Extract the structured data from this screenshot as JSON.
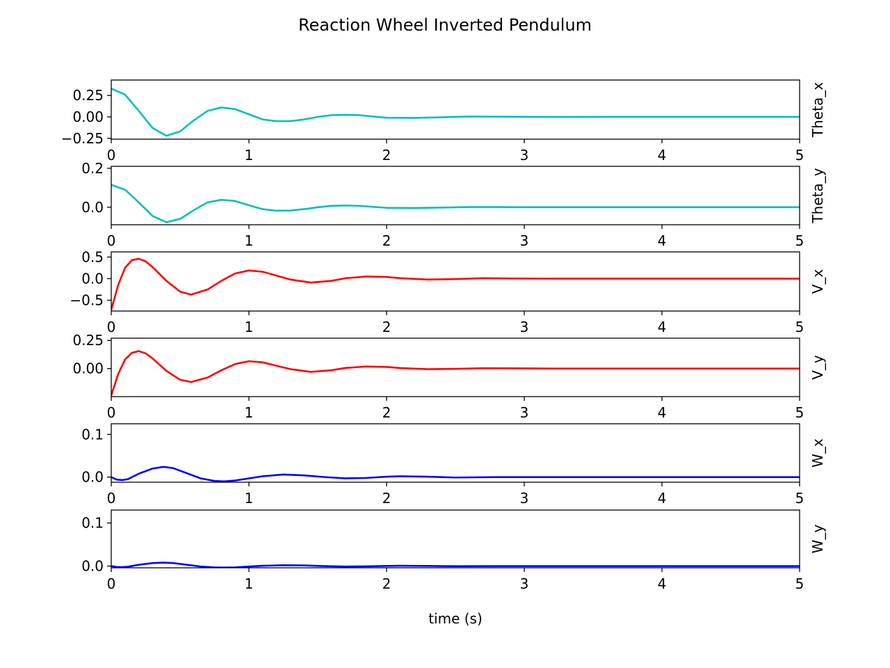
{
  "figure": {
    "title": "Reaction Wheel Inverted Pendulum",
    "xlabel": "time (s)"
  },
  "chart_data": [
    {
      "type": "line",
      "ylabel": "Theta_x",
      "color": "#00bfbf",
      "xlim": [
        0,
        5
      ],
      "ylim": [
        -0.26,
        0.43
      ],
      "xticks": [
        0,
        1,
        2,
        3,
        4,
        5
      ],
      "xtick_labels": [
        "0",
        "1",
        "2",
        "3",
        "4",
        "5"
      ],
      "yticks": [
        -0.25,
        0,
        0.25
      ],
      "ytick_labels": [
        "−0.25",
        "0.00",
        "0.25"
      ],
      "x": [
        0,
        0.1,
        0.2,
        0.3,
        0.4,
        0.5,
        0.6,
        0.7,
        0.8,
        0.9,
        1.0,
        1.1,
        1.2,
        1.3,
        1.4,
        1.5,
        1.6,
        1.7,
        1.8,
        1.9,
        2.0,
        2.2,
        2.4,
        2.6,
        2.8,
        3.0,
        3.3,
        3.6,
        4.0,
        4.5,
        5.0
      ],
      "y": [
        0.33,
        0.26,
        0.07,
        -0.13,
        -0.22,
        -0.17,
        -0.04,
        0.07,
        0.11,
        0.09,
        0.03,
        -0.03,
        -0.05,
        -0.05,
        -0.03,
        0.0,
        0.02,
        0.025,
        0.02,
        0.005,
        -0.01,
        -0.012,
        -0.005,
        0.004,
        0.002,
        0.0,
        -0.001,
        0.0,
        0.0,
        0.0,
        0.0
      ]
    },
    {
      "type": "line",
      "ylabel": "Theta_y",
      "color": "#00bfbf",
      "xlim": [
        0,
        5
      ],
      "ylim": [
        -0.09,
        0.21
      ],
      "xticks": [
        0,
        1,
        2,
        3,
        4,
        5
      ],
      "xtick_labels": [
        "0",
        "1",
        "2",
        "3",
        "4",
        "5"
      ],
      "yticks": [
        0,
        0.2
      ],
      "ytick_labels": [
        "0.0",
        "0.2"
      ],
      "x": [
        0,
        0.1,
        0.2,
        0.3,
        0.4,
        0.5,
        0.6,
        0.7,
        0.8,
        0.9,
        1.0,
        1.1,
        1.2,
        1.3,
        1.4,
        1.5,
        1.6,
        1.7,
        1.8,
        1.9,
        2.0,
        2.2,
        2.4,
        2.6,
        2.8,
        3.0,
        3.3,
        3.6,
        4.0,
        4.5,
        5.0
      ],
      "y": [
        0.115,
        0.09,
        0.025,
        -0.045,
        -0.077,
        -0.06,
        -0.015,
        0.025,
        0.038,
        0.032,
        0.01,
        -0.01,
        -0.018,
        -0.017,
        -0.01,
        0.0,
        0.007,
        0.009,
        0.007,
        0.002,
        -0.003,
        -0.004,
        -0.002,
        0.001,
        0.001,
        0.0,
        0.0,
        0.0,
        0.0,
        0.0,
        0.0
      ]
    },
    {
      "type": "line",
      "ylabel": "V_x",
      "color": "#ff0000",
      "xlim": [
        0,
        5
      ],
      "ylim": [
        -0.75,
        0.62
      ],
      "xticks": [
        0,
        1,
        2,
        3,
        4,
        5
      ],
      "xtick_labels": [
        "0",
        "1",
        "2",
        "3",
        "4",
        "5"
      ],
      "yticks": [
        -0.5,
        0,
        0.5
      ],
      "ytick_labels": [
        "−0.5",
        "0.0",
        "0.5"
      ],
      "x": [
        0,
        0.05,
        0.1,
        0.15,
        0.2,
        0.25,
        0.3,
        0.4,
        0.5,
        0.58,
        0.7,
        0.8,
        0.9,
        1.0,
        1.1,
        1.2,
        1.3,
        1.45,
        1.6,
        1.7,
        1.85,
        2.0,
        2.1,
        2.3,
        2.5,
        2.7,
        2.9,
        3.2,
        3.5,
        4.0,
        4.5,
        5.0
      ],
      "y": [
        -0.72,
        -0.15,
        0.25,
        0.43,
        0.46,
        0.4,
        0.27,
        -0.05,
        -0.3,
        -0.37,
        -0.25,
        -0.05,
        0.12,
        0.19,
        0.16,
        0.07,
        -0.02,
        -0.09,
        -0.05,
        0.01,
        0.05,
        0.04,
        0.01,
        -0.02,
        -0.01,
        0.01,
        0.005,
        0.0,
        0.0,
        0.0,
        0.0,
        0.0
      ]
    },
    {
      "type": "line",
      "ylabel": "V_y",
      "color": "#ff0000",
      "xlim": [
        0,
        5
      ],
      "ylim": [
        -0.25,
        0.27
      ],
      "xticks": [
        0,
        1,
        2,
        3,
        4,
        5
      ],
      "xtick_labels": [
        "0",
        "1",
        "2",
        "3",
        "4",
        "5"
      ],
      "yticks": [
        0,
        0.25
      ],
      "ytick_labels": [
        "0.00",
        "0.25"
      ],
      "x": [
        0,
        0.05,
        0.1,
        0.15,
        0.2,
        0.25,
        0.3,
        0.4,
        0.5,
        0.58,
        0.7,
        0.8,
        0.9,
        1.0,
        1.1,
        1.2,
        1.3,
        1.45,
        1.6,
        1.7,
        1.85,
        2.0,
        2.1,
        2.3,
        2.5,
        2.7,
        2.9,
        3.2,
        3.5,
        4.0,
        4.5,
        5.0
      ],
      "y": [
        -0.24,
        -0.05,
        0.08,
        0.14,
        0.155,
        0.135,
        0.09,
        -0.02,
        -0.1,
        -0.12,
        -0.08,
        -0.015,
        0.04,
        0.065,
        0.055,
        0.025,
        -0.005,
        -0.03,
        -0.015,
        0.005,
        0.018,
        0.014,
        0.004,
        -0.006,
        -0.003,
        0.003,
        0.002,
        0.0,
        0.0,
        0.0,
        0.0,
        0.0
      ]
    },
    {
      "type": "line",
      "ylabel": "W_x",
      "color": "#0000ff",
      "xlim": [
        0,
        5
      ],
      "ylim": [
        -0.012,
        0.125
      ],
      "xticks": [
        0,
        1,
        2,
        3,
        4,
        5
      ],
      "xtick_labels": [
        "0",
        "1",
        "2",
        "3",
        "4",
        "5"
      ],
      "yticks": [
        0,
        0.1
      ],
      "ytick_labels": [
        "0.0",
        "0.1"
      ],
      "x": [
        0,
        0.04,
        0.08,
        0.12,
        0.2,
        0.3,
        0.38,
        0.45,
        0.55,
        0.65,
        0.75,
        0.82,
        0.9,
        1.0,
        1.1,
        1.25,
        1.4,
        1.55,
        1.7,
        1.85,
        2.0,
        2.1,
        2.3,
        2.5,
        2.8,
        3.0,
        3.3,
        3.6,
        4.0,
        4.5,
        5.0
      ],
      "y": [
        0.0,
        -0.006,
        -0.007,
        -0.005,
        0.008,
        0.02,
        0.024,
        0.021,
        0.009,
        -0.003,
        -0.009,
        -0.01,
        -0.008,
        -0.003,
        0.002,
        0.006,
        0.004,
        0.0,
        -0.003,
        -0.002,
        0.001,
        0.002,
        0.001,
        -0.001,
        0.0,
        0.0,
        0.0,
        0.0,
        0.0,
        0.0,
        0.0
      ]
    },
    {
      "type": "line",
      "ylabel": "W_y",
      "color": "#0000ff",
      "xlim": [
        0,
        5
      ],
      "ylim": [
        -0.004,
        0.13
      ],
      "xticks": [
        0,
        1,
        2,
        3,
        4,
        5
      ],
      "xtick_labels": [
        "0",
        "1",
        "2",
        "3",
        "4",
        "5"
      ],
      "yticks": [
        0,
        0.1
      ],
      "ytick_labels": [
        "0.0",
        "0.1"
      ],
      "x": [
        0,
        0.04,
        0.08,
        0.12,
        0.2,
        0.3,
        0.38,
        0.45,
        0.55,
        0.65,
        0.75,
        0.82,
        0.9,
        1.0,
        1.1,
        1.25,
        1.4,
        1.55,
        1.7,
        1.85,
        2.0,
        2.1,
        2.3,
        2.5,
        2.8,
        3.0,
        3.3,
        3.6,
        4.0,
        4.5,
        5.0
      ],
      "y": [
        0.0,
        -0.002,
        -0.0025,
        -0.0015,
        0.003,
        0.007,
        0.008,
        0.007,
        0.003,
        -0.001,
        -0.003,
        -0.0035,
        -0.003,
        -0.001,
        0.0007,
        0.002,
        0.0015,
        0.0,
        -0.001,
        -0.0007,
        0.0003,
        0.0007,
        0.0003,
        -0.0003,
        0.0,
        0.0,
        0.0,
        0.0,
        0.0,
        0.0,
        0.0
      ]
    }
  ]
}
